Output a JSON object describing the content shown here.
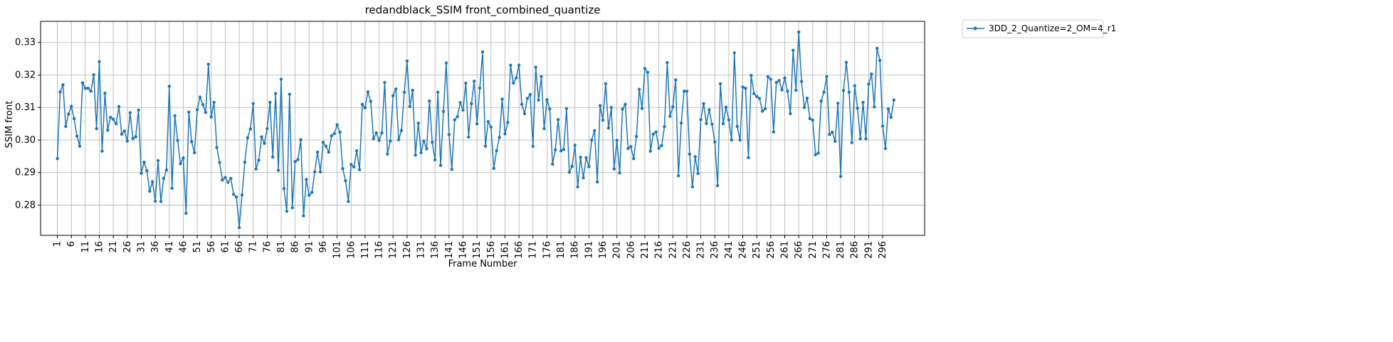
{
  "chart_data": {
    "type": "line",
    "title": "redandblack_SSIM front_combined_quantize",
    "xlabel": "Frame Number",
    "ylabel": "SSIM front",
    "xlim": [
      -5,
      311
    ],
    "ylim": [
      0.2707,
      0.3365
    ],
    "grid": true,
    "legend_position": "outside-top-right",
    "x_ticks": [
      1,
      6,
      11,
      16,
      21,
      26,
      31,
      36,
      41,
      46,
      51,
      56,
      61,
      66,
      71,
      76,
      81,
      86,
      91,
      96,
      101,
      106,
      111,
      116,
      121,
      126,
      131,
      136,
      141,
      146,
      151,
      156,
      161,
      166,
      171,
      176,
      181,
      186,
      191,
      196,
      201,
      206,
      211,
      216,
      221,
      226,
      231,
      236,
      241,
      246,
      251,
      256,
      261,
      266,
      271,
      276,
      281,
      286,
      291,
      296
    ],
    "y_ticks": [
      0.28,
      0.29,
      0.3,
      0.31,
      0.32,
      0.33
    ],
    "y_tick_labels": [
      "0.28",
      "0.29",
      "0.30",
      "0.31",
      "0.32",
      "0.33"
    ],
    "x_start": 1,
    "series": [
      {
        "name": "3DD_2_Quantize=2_OM=4_r1",
        "color": "#1f77b4",
        "marker": "circle",
        "values": [
          0.2943,
          0.3148,
          0.317,
          0.3042,
          0.308,
          0.3104,
          0.3066,
          0.3012,
          0.2981,
          0.3176,
          0.3159,
          0.3159,
          0.315,
          0.3201,
          0.3035,
          0.3241,
          0.2966,
          0.3144,
          0.303,
          0.307,
          0.3064,
          0.305,
          0.3103,
          0.3018,
          0.3028,
          0.2997,
          0.3084,
          0.3005,
          0.301,
          0.3092,
          0.2898,
          0.2932,
          0.2906,
          0.2843,
          0.2872,
          0.2812,
          0.2937,
          0.2811,
          0.2882,
          0.2908,
          0.3165,
          0.2852,
          0.3075,
          0.2999,
          0.2927,
          0.2945,
          0.2775,
          0.3086,
          0.2995,
          0.2961,
          0.3093,
          0.3132,
          0.3109,
          0.3085,
          0.3233,
          0.3071,
          0.3116,
          0.2977,
          0.2931,
          0.2877,
          0.2885,
          0.287,
          0.2882,
          0.2833,
          0.2825,
          0.2731,
          0.2831,
          0.2932,
          0.3007,
          0.3034,
          0.3112,
          0.2911,
          0.2938,
          0.301,
          0.299,
          0.3035,
          0.3116,
          0.2948,
          0.3143,
          0.2907,
          0.3187,
          0.2851,
          0.2781,
          0.3141,
          0.2792,
          0.2934,
          0.294,
          0.3001,
          0.2767,
          0.2879,
          0.283,
          0.2839,
          0.2902,
          0.2963,
          0.2902,
          0.2993,
          0.2981,
          0.2963,
          0.3013,
          0.302,
          0.3047,
          0.3024,
          0.2912,
          0.2875,
          0.2811,
          0.2925,
          0.2917,
          0.2967,
          0.2909,
          0.311,
          0.3099,
          0.3148,
          0.3119,
          0.3004,
          0.3022,
          0.2999,
          0.3022,
          0.3177,
          0.2957,
          0.2997,
          0.3136,
          0.3157,
          0.3001,
          0.3029,
          0.3147,
          0.3243,
          0.3103,
          0.3153,
          0.2954,
          0.3052,
          0.2961,
          0.2997,
          0.2973,
          0.312,
          0.2993,
          0.2939,
          0.3147,
          0.2922,
          0.3088,
          0.3237,
          0.3017,
          0.291,
          0.3062,
          0.3072,
          0.3115,
          0.3092,
          0.3175,
          0.3009,
          0.3112,
          0.3181,
          0.305,
          0.316,
          0.3271,
          0.2981,
          0.3057,
          0.304,
          0.2913,
          0.2967,
          0.3008,
          0.3126,
          0.3019,
          0.3054,
          0.323,
          0.3175,
          0.3191,
          0.323,
          0.311,
          0.3081,
          0.3128,
          0.314,
          0.2981,
          0.3224,
          0.3123,
          0.3195,
          0.3035,
          0.3124,
          0.3096,
          0.2926,
          0.297,
          0.3063,
          0.2967,
          0.2971,
          0.3097,
          0.2901,
          0.2919,
          0.2984,
          0.2856,
          0.2947,
          0.2884,
          0.2946,
          0.2918,
          0.3,
          0.3029,
          0.2871,
          0.3106,
          0.3061,
          0.3173,
          0.3037,
          0.31,
          0.2911,
          0.2999,
          0.2899,
          0.3095,
          0.311,
          0.2974,
          0.298,
          0.2943,
          0.3011,
          0.3156,
          0.3097,
          0.322,
          0.3208,
          0.2966,
          0.3018,
          0.3025,
          0.2975,
          0.2983,
          0.3041,
          0.3238,
          0.3073,
          0.3102,
          0.3185,
          0.289,
          0.3052,
          0.315,
          0.315,
          0.2957,
          0.2856,
          0.2949,
          0.2897,
          0.3063,
          0.3112,
          0.3051,
          0.3093,
          0.3049,
          0.2994,
          0.286,
          0.3173,
          0.305,
          0.3101,
          0.3062,
          0.3,
          0.3268,
          0.3042,
          0.3,
          0.3163,
          0.3159,
          0.2946,
          0.3199,
          0.3143,
          0.3134,
          0.3128,
          0.3089,
          0.3096,
          0.3195,
          0.3187,
          0.3025,
          0.3177,
          0.3183,
          0.3154,
          0.3191,
          0.315,
          0.3081,
          0.3276,
          0.3153,
          0.3332,
          0.318,
          0.31,
          0.3129,
          0.3066,
          0.3061,
          0.2955,
          0.296,
          0.312,
          0.3147,
          0.3195,
          0.3017,
          0.3024,
          0.2996,
          0.3113,
          0.2888,
          0.3152,
          0.3239,
          0.3147,
          0.2992,
          0.3167,
          0.3098,
          0.3004,
          0.3116,
          0.3004,
          0.3172,
          0.3203,
          0.3102,
          0.3282,
          0.3245,
          0.3043,
          0.2974,
          0.3096,
          0.307,
          0.3123
        ]
      }
    ]
  }
}
